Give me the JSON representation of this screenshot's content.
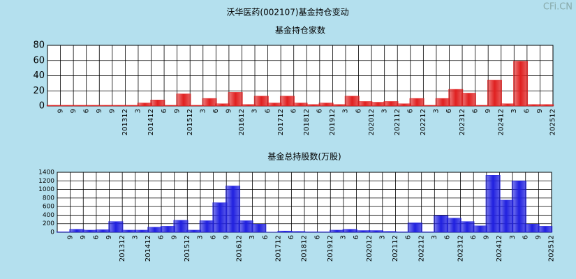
{
  "title": "沃华医药(002107)基金持仓变动",
  "watermark": "CFi.CN",
  "chart_data": [
    {
      "type": "bar",
      "title": "基金持仓家数",
      "color": "#e02020",
      "categories": [
        "9",
        "9",
        "6",
        "9",
        "9",
        "201312",
        "3",
        "201412",
        "6",
        "9",
        "201512",
        "3",
        "6",
        "9",
        "201612",
        "3",
        "6",
        "201712",
        "6",
        "201812",
        "6",
        "201912",
        "3",
        "6",
        "202012",
        "3",
        "202112",
        "6",
        "202212",
        "3",
        "6",
        "202312",
        "6",
        "9",
        "202412",
        "3",
        "6",
        "9",
        "202512"
      ],
      "values": [
        1,
        1,
        1,
        1,
        1,
        1,
        1,
        4,
        8,
        1,
        16,
        1,
        10,
        3,
        18,
        2,
        13,
        4,
        13,
        4,
        2,
        4,
        2,
        13,
        6,
        5,
        6,
        3,
        10,
        1,
        10,
        22,
        17,
        1,
        34,
        3,
        59,
        2,
        2
      ],
      "ylim": [
        0,
        80
      ],
      "yticks": [
        0,
        20,
        40,
        60,
        80
      ],
      "grid": true
    },
    {
      "type": "bar",
      "title": "基金总持股数(万股)",
      "color": "#2020e0",
      "categories": [
        "9",
        "9",
        "6",
        "9",
        "201312",
        "3",
        "201412",
        "6",
        "9",
        "201512",
        "3",
        "6",
        "9",
        "201612",
        "3",
        "6",
        "201712",
        "6",
        "201812",
        "6",
        "201912",
        "3",
        "6",
        "202012",
        "3",
        "202112",
        "6",
        "202212",
        "3",
        "6",
        "202312",
        "6",
        "9",
        "202412",
        "3",
        "6",
        "9",
        "202512"
      ],
      "values": [
        10,
        70,
        50,
        60,
        250,
        50,
        50,
        120,
        140,
        280,
        50,
        270,
        690,
        1080,
        270,
        190,
        5,
        30,
        20,
        10,
        10,
        50,
        70,
        40,
        40,
        20,
        10,
        220,
        10,
        390,
        330,
        250,
        150,
        1330,
        750,
        1200,
        190,
        140
      ],
      "ylim": [
        0,
        1400
      ],
      "yticks": [
        0,
        200,
        400,
        600,
        800,
        1000,
        1200,
        1400
      ],
      "grid": true
    }
  ]
}
